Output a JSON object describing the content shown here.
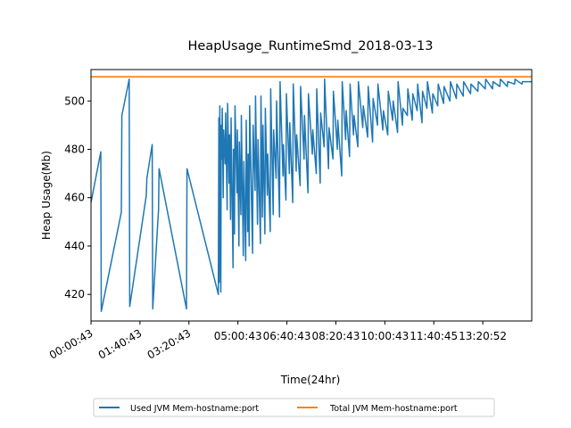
{
  "chart_data": {
    "type": "line",
    "title": "HeapUsage_RuntimeSmd_2018-03-13",
    "xlabel": "Time(24hr)",
    "ylabel": "Heap Usage(Mb)",
    "x_ticks": [
      "00:00:43",
      "01:40:43",
      "03:20:43",
      "05:00:43",
      "06:40:43",
      "08:20:43",
      "10:00:43",
      "11:40:45",
      "13:20:52"
    ],
    "y_ticks": [
      420,
      440,
      460,
      480,
      500
    ],
    "xlim_minutes": [
      0,
      900
    ],
    "ylim": [
      409,
      513
    ],
    "grid": false,
    "legend_placement": "bottom-center",
    "series": [
      {
        "name": "Used JVM Mem-hostname:port",
        "color": "#1f77b4",
        "x": [
          0,
          20,
          21,
          62,
          63,
          78,
          79,
          113,
          114,
          125,
          126,
          138,
          139,
          195,
          196,
          260,
          261,
          262,
          263,
          265,
          266,
          267,
          268,
          270,
          271,
          274,
          275,
          278,
          279,
          282,
          283,
          285,
          286,
          290,
          291,
          293,
          294,
          298,
          299,
          302,
          303,
          306,
          307,
          311,
          312,
          316,
          317,
          320,
          321,
          323,
          324,
          330,
          331,
          335,
          336,
          340,
          341,
          346,
          347,
          350,
          351,
          355,
          356,
          360,
          361,
          366,
          367,
          372,
          373,
          378,
          379,
          385,
          386,
          392,
          393,
          398,
          399,
          405,
          406,
          412,
          413,
          419,
          420,
          427,
          428,
          435,
          436,
          443,
          444,
          452,
          453,
          460,
          461,
          468,
          469,
          476,
          477,
          485,
          486,
          494,
          495,
          503,
          504,
          512,
          513,
          520,
          521,
          528,
          529,
          536,
          537,
          545,
          546,
          555,
          556,
          565,
          566,
          575,
          576,
          585,
          586,
          596,
          597,
          606,
          607,
          616,
          617,
          626,
          627,
          636,
          637,
          646,
          647,
          656,
          657,
          666,
          667,
          676,
          677,
          686,
          687,
          697,
          698,
          708,
          709,
          720,
          721,
          733,
          734,
          746,
          747,
          760,
          761,
          775,
          776,
          790,
          791,
          805,
          806,
          820,
          821,
          835,
          836,
          850,
          851,
          865,
          866,
          880,
          881,
          895,
          900
        ],
        "y": [
          458,
          479,
          413,
          454,
          494,
          509,
          415,
          461,
          468,
          482,
          414,
          455,
          472,
          414,
          472,
          420,
          493,
          425,
          498,
          421,
          490,
          476,
          497,
          460,
          488,
          474,
          495,
          455,
          499,
          466,
          486,
          451,
          493,
          431,
          480,
          445,
          498,
          462,
          488,
          440,
          483,
          453,
          494,
          436,
          475,
          434,
          492,
          446,
          478,
          440,
          498,
          437,
          490,
          463,
          502,
          449,
          484,
          441,
          502,
          452,
          490,
          445,
          497,
          461,
          478,
          446,
          505,
          453,
          488,
          468,
          500,
          452,
          508,
          469,
          482,
          459,
          503,
          470,
          491,
          458,
          507,
          471,
          486,
          465,
          506,
          476,
          494,
          462,
          503,
          478,
          488,
          470,
          505,
          466,
          495,
          481,
          509,
          472,
          489,
          476,
          504,
          480,
          492,
          469,
          508,
          484,
          496,
          477,
          507,
          486,
          494,
          481,
          508,
          489,
          498,
          485,
          506,
          483,
          501,
          490,
          507,
          488,
          496,
          486,
          504,
          492,
          500,
          487,
          508,
          490,
          497,
          494,
          505,
          492,
          503,
          496,
          507,
          491,
          504,
          497,
          508,
          495,
          503,
          498,
          507,
          499,
          506,
          500,
          508,
          501,
          507,
          502,
          508,
          503,
          507,
          504,
          508,
          505,
          509,
          505,
          508,
          506,
          509,
          506,
          508,
          507,
          509,
          507,
          508,
          508,
          508
        ]
      },
      {
        "name": "Total JVM Mem-hostname:port",
        "color": "#ff7f0e",
        "x": [
          0,
          900
        ],
        "y": [
          510,
          510
        ]
      }
    ]
  }
}
